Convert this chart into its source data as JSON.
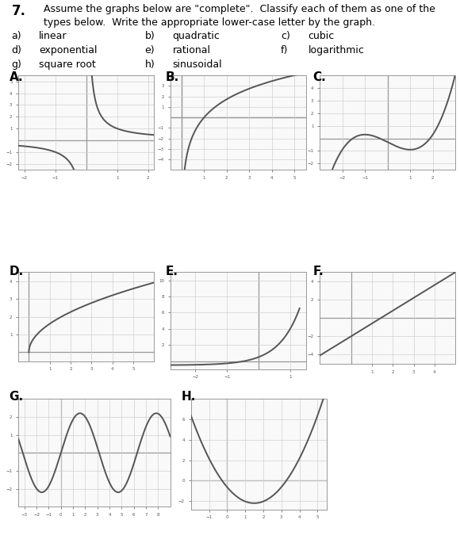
{
  "line_color": "#555555",
  "grid_color": "#d0d0d0",
  "axis_color": "#999999",
  "bg_color": "#ffffff",
  "text_color": "#000000",
  "header": "7.",
  "problem_line1": "Assume the graphs below are \"complete\".  Classify each of them as one of the",
  "problem_line2": "types below.  Write the appropriate lower-case letter by the graph.",
  "opt_row1": [
    [
      "a)",
      "linear"
    ],
    [
      "b)",
      "quadratic"
    ],
    [
      "c)",
      "cubic"
    ]
  ],
  "opt_row2": [
    [
      "d)",
      "exponential"
    ],
    [
      "e)",
      "rational"
    ],
    [
      "f)",
      "logarithmic"
    ]
  ],
  "opt_row3": [
    [
      "g)",
      "square root"
    ],
    [
      "h)",
      "sinusoidal"
    ]
  ],
  "labels": [
    "A.",
    "B.",
    "C.",
    "D.",
    "E.",
    "F.",
    "G.",
    "H."
  ]
}
